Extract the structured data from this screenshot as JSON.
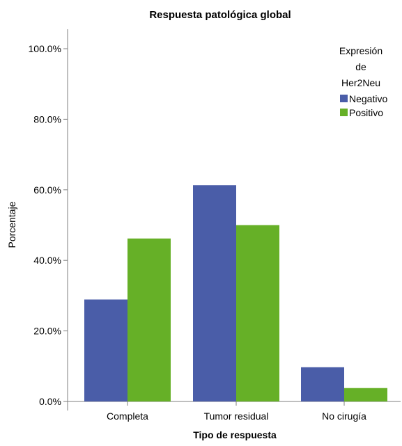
{
  "chart_data": {
    "type": "bar",
    "title": "Respuesta patológica global",
    "xlabel": "Tipo de respuesta",
    "ylabel": "Porcentaje",
    "categories": [
      "Completa",
      "Tumor residual",
      "No cirugía"
    ],
    "ylim": [
      0,
      100
    ],
    "yticks": [
      "0.0%",
      "20.0%",
      "40.0%",
      "60.0%",
      "80.0%",
      "100.0%"
    ],
    "ytick_values": [
      0,
      20,
      40,
      60,
      80,
      100
    ],
    "grid": false,
    "legend": {
      "title": [
        "Expresión",
        "de",
        "Her2Neu"
      ],
      "placement": "top-right"
    },
    "series": [
      {
        "name": "Negativo",
        "color": "#4a5da8",
        "values": [
          28.9,
          61.3,
          9.7
        ]
      },
      {
        "name": "Positivo",
        "color": "#66b027",
        "values": [
          46.2,
          50.0,
          3.8
        ]
      }
    ]
  }
}
